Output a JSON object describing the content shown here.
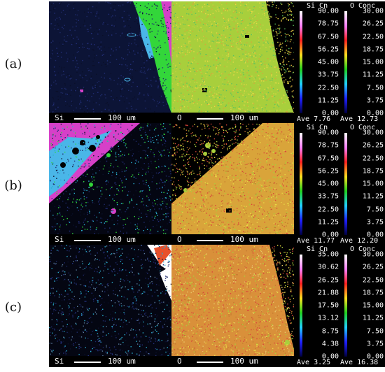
{
  "rows": [
    {
      "label": "(a)",
      "si_caption": "Si",
      "o_caption": "O",
      "scale_text": "100 um",
      "si_header": "Si Cn",
      "o_header": "O Conc",
      "si_ticks": [
        "90.00",
        "78.75",
        "67.50",
        "56.25",
        "45.00",
        "33.75",
        "22.50",
        "11.25",
        "0.00"
      ],
      "o_ticks": [
        "30.00",
        "26.25",
        "22.50",
        "18.75",
        "15.00",
        "11.25",
        "7.50",
        "3.75",
        "0.00"
      ],
      "si_ave": "Ave 7.76",
      "o_ave": "Ave 12.73"
    },
    {
      "label": "(b)",
      "si_caption": "Si",
      "o_caption": "O",
      "scale_text": "100 um",
      "si_header": "Si Cn",
      "o_header": "O Conc",
      "si_ticks": [
        "90.00",
        "78.75",
        "67.50",
        "56.25",
        "45.00",
        "33.75",
        "22.50",
        "11.25",
        "0.00"
      ],
      "o_ticks": [
        "30.00",
        "26.25",
        "22.50",
        "18.75",
        "15.00",
        "11.25",
        "7.50",
        "3.75",
        "0.00"
      ],
      "si_ave": "Ave 11.77",
      "o_ave": "Ave 12.20"
    },
    {
      "label": "(c)",
      "si_caption": "Si",
      "o_caption": "O",
      "scale_text": "100 um",
      "si_header": "Si Cn",
      "o_header": "O Conc",
      "si_ticks": [
        "35.00",
        "30.62",
        "26.25",
        "21.88",
        "17.50",
        "13.12",
        "8.75",
        "4.38",
        "0.00"
      ],
      "o_ticks": [
        "30.00",
        "26.25",
        "22.50",
        "18.75",
        "15.00",
        "11.25",
        "7.50",
        "3.75",
        "0.00"
      ],
      "si_ave": "Ave 3.25",
      "o_ave": "Ave 16.38"
    }
  ],
  "colors": {
    "si_bg": "#0c1436",
    "green_phase": "#33d63a",
    "magenta_phase": "#d640c8",
    "cyan_phase": "#4ab6e8",
    "o_yellowgreen": "#a8cf3c",
    "o_orange": "#d9a43a",
    "o_red": "#d9453b",
    "gradient": [
      "#ffffff",
      "#ff80ff",
      "#ff2020",
      "#ffe020",
      "#20d020",
      "#20d0ff",
      "#2020ff",
      "#000040"
    ]
  }
}
